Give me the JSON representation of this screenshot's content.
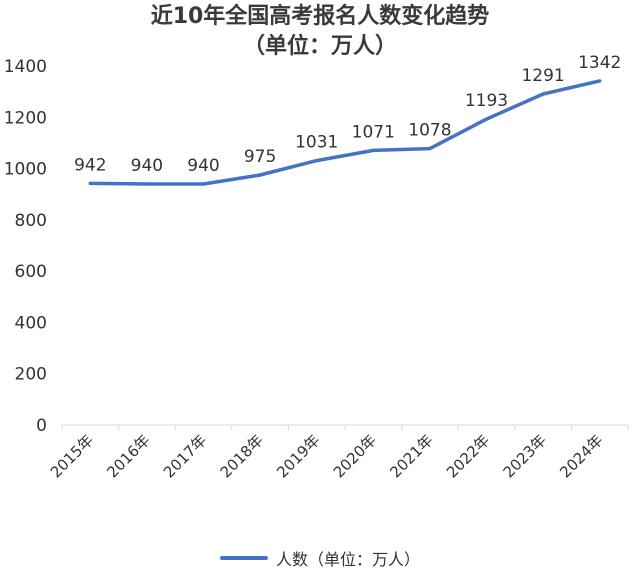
{
  "chart_data": {
    "type": "line",
    "title": "近10年全国高考报名人数变化趋势",
    "subtitle": "（单位：万人）",
    "categories": [
      "2015年",
      "2016年",
      "2017年",
      "2018年",
      "2019年",
      "2020年",
      "2021年",
      "2022年",
      "2023年",
      "2024年"
    ],
    "series": [
      {
        "name": "人数（单位：万人）",
        "values": [
          942,
          940,
          940,
          975,
          1031,
          1071,
          1078,
          1193,
          1291,
          1342
        ],
        "labels": [
          "942",
          "940",
          "940",
          "975",
          "1031",
          "1071",
          "1078",
          "1193",
          "1291",
          "1342"
        ],
        "color": "#4472c4"
      }
    ],
    "y_ticks": [
      "0",
      "200",
      "400",
      "600",
      "800",
      "1000",
      "1200",
      "1400"
    ],
    "ylim": [
      0,
      1400
    ],
    "grid": false,
    "legend_position": "bottom",
    "axis_color": "#d9d9d9"
  }
}
